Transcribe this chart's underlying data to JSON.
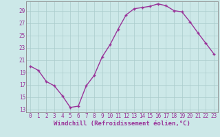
{
  "x": [
    0,
    1,
    2,
    3,
    4,
    5,
    6,
    7,
    8,
    9,
    10,
    11,
    12,
    13,
    14,
    15,
    16,
    17,
    18,
    19,
    20,
    21,
    22,
    23
  ],
  "y": [
    20.0,
    19.3,
    17.5,
    16.8,
    15.2,
    13.3,
    13.5,
    16.8,
    18.5,
    21.5,
    23.5,
    26.0,
    28.3,
    29.3,
    29.5,
    29.7,
    30.1,
    29.8,
    29.0,
    28.8,
    27.2,
    25.4,
    23.7,
    22.0
  ],
  "line_color": "#993399",
  "marker": "+",
  "bg_color": "#cce8e8",
  "grid_color": "#aacccc",
  "xlabel": "Windchill (Refroidissement éolien,°C)",
  "yticks": [
    13,
    15,
    17,
    19,
    21,
    23,
    25,
    27,
    29
  ],
  "xticks": [
    0,
    1,
    2,
    3,
    4,
    5,
    6,
    7,
    8,
    9,
    10,
    11,
    12,
    13,
    14,
    15,
    16,
    17,
    18,
    19,
    20,
    21,
    22,
    23
  ],
  "ylim": [
    12.5,
    30.5
  ],
  "xlim": [
    -0.5,
    23.5
  ],
  "xlabel_fontsize": 6.5,
  "tick_fontsize": 5.5,
  "line_color_rgb": "#993399",
  "line_width": 1.0,
  "marker_size": 3.5,
  "text_color": "#993399",
  "spine_color": "#888888"
}
